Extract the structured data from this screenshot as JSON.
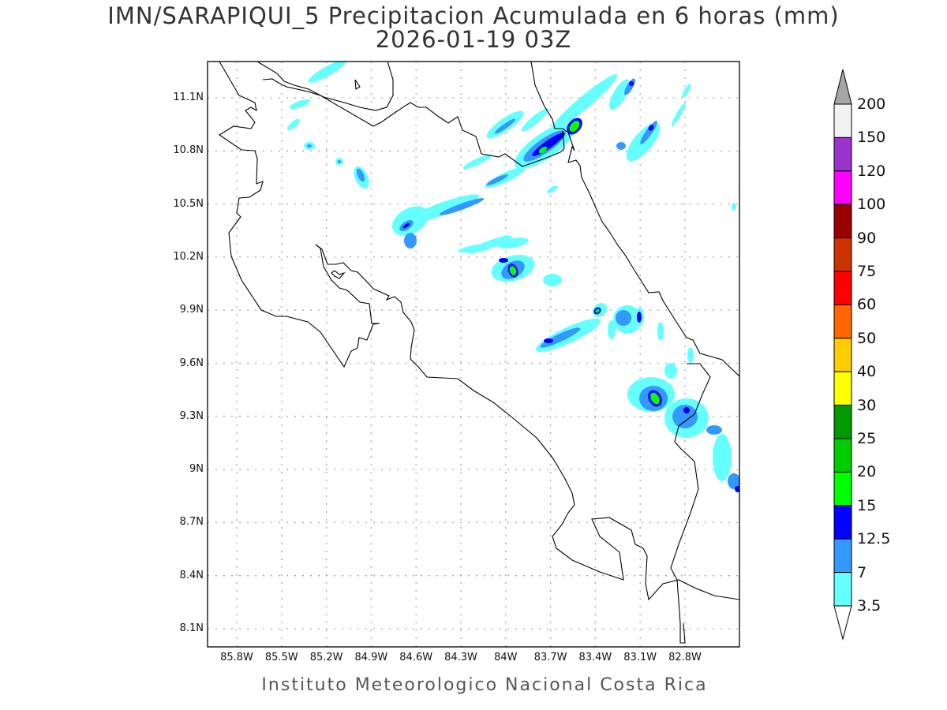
{
  "header": {
    "title": "IMN/SARAPIQUI_5 Precipitacion Acumulada en 6 horas (mm)",
    "subtitle": "2026-01-19 03Z"
  },
  "map": {
    "lat_labels": [
      "11.1N",
      "10.8N",
      "10.5N",
      "10.2N",
      "9.9N",
      "9.6N",
      "9.3N",
      "9N",
      "8.7N",
      "8.4N",
      "8.1N"
    ],
    "lon_labels": [
      "85.8W",
      "85.5W",
      "85.2W",
      "84.9W",
      "84.6W",
      "84.3W",
      "84W",
      "83.7W",
      "83.4W",
      "83.1W",
      "82.8W"
    ]
  },
  "colorbar": {
    "labels": [
      "200",
      "150",
      "120",
      "100",
      "90",
      "75",
      "60",
      "50",
      "40",
      "30",
      "25",
      "20",
      "15",
      "12.5",
      "7",
      "3.5"
    ],
    "colors": [
      "#f2f2f2",
      "#9933cc",
      "#ff00ff",
      "#990000",
      "#cc3300",
      "#ff0000",
      "#ff6600",
      "#ffcc00",
      "#ffff00",
      "#009900",
      "#00cc00",
      "#00ff00",
      "#0000ff",
      "#3399ff",
      "#66ffff"
    ],
    "over_color": "#a6a6a6",
    "under_color": "#ffffff"
  },
  "footer": "Instituto Meteorologico Nacional Costa Rica"
}
